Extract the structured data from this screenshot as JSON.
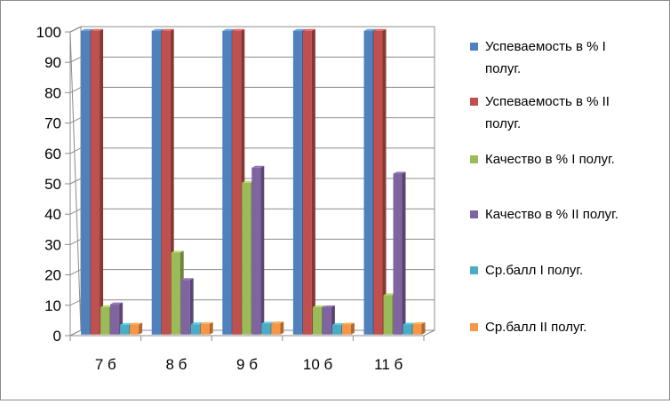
{
  "chart_data": {
    "type": "bar",
    "style": "3d-clustered-column",
    "categories": [
      "7 б",
      "8 б",
      "9 б",
      "10 б",
      "11 б"
    ],
    "yticks": [
      "0",
      "10",
      "20",
      "30",
      "40",
      "50",
      "60",
      "70",
      "80",
      "90",
      "100"
    ],
    "ylim": [
      0,
      100
    ],
    "grid": true,
    "legend_position": "right",
    "series": [
      {
        "name": "Успеваемость в % I полуг.",
        "legend_lines": [
          "Успеваемость в % I",
          "полуг."
        ],
        "color": "#4f81bd",
        "values": [
          100,
          100,
          100,
          100,
          100
        ]
      },
      {
        "name": "Успеваемость в % II полуг.",
        "legend_lines": [
          "Успеваемость в % II",
          "полуг."
        ],
        "color": "#c0504d",
        "values": [
          100,
          100,
          100,
          100,
          100
        ]
      },
      {
        "name": "Качество в % I полуг.",
        "legend_lines": [
          "Качество в % I полуг."
        ],
        "color": "#9bbb59",
        "values": [
          9,
          27,
          50,
          9,
          13
        ]
      },
      {
        "name": "Качество в % II полуг.",
        "legend_lines": [
          "Качество в % II полуг."
        ],
        "color": "#8064a2",
        "values": [
          10,
          18,
          55,
          9,
          53
        ]
      },
      {
        "name": "Ср.балл I полуг.",
        "legend_lines": [
          "Ср.балл I полуг."
        ],
        "color": "#4bacc6",
        "values": [
          3.2,
          3.4,
          3.6,
          3.2,
          3.3
        ]
      },
      {
        "name": "Ср.балл II полуг.",
        "legend_lines": [
          "Ср.балл II полуг."
        ],
        "color": "#f79646",
        "values": [
          3.3,
          3.5,
          3.7,
          3.3,
          3.5
        ]
      }
    ]
  }
}
